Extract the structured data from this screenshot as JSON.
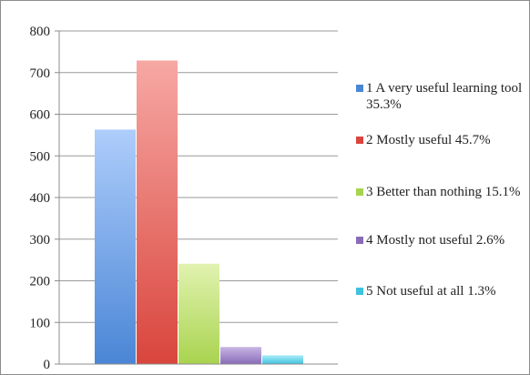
{
  "chart_data": {
    "type": "bar",
    "categories": [
      "1 A very useful learning tool 35.3%",
      "2 Mostly useful 45.7%",
      "3 Better than nothing 15.1%",
      "4 Mostly not useful 2.6%",
      "5 Not useful at all 1.3%"
    ],
    "values": [
      563,
      729,
      241,
      41,
      21
    ],
    "colors": [
      "#6fa3e8",
      "#e8625a",
      "#c3e07a",
      "#9e84c4",
      "#5fcde4"
    ],
    "ylim": [
      0,
      800
    ],
    "yticks": [
      "0",
      "100",
      "200",
      "300",
      "400",
      "500",
      "600",
      "700",
      "800"
    ],
    "grid": true,
    "legend_position": "right",
    "title": "",
    "xlabel": "",
    "ylabel": ""
  },
  "legend": {
    "items": [
      {
        "text": "1 A very useful learning tool 35.3%",
        "color": "#4a86d6"
      },
      {
        "text": "2 Mostly useful 45.7%",
        "color": "#d9453d"
      },
      {
        "text": "3 Better than nothing 15.1%",
        "color": "#a9d34f"
      },
      {
        "text": "4 Mostly not useful 2.6%",
        "color": "#8a6bb8"
      },
      {
        "text": "5 Not useful at all 1.3%",
        "color": "#3fc2de"
      }
    ]
  }
}
